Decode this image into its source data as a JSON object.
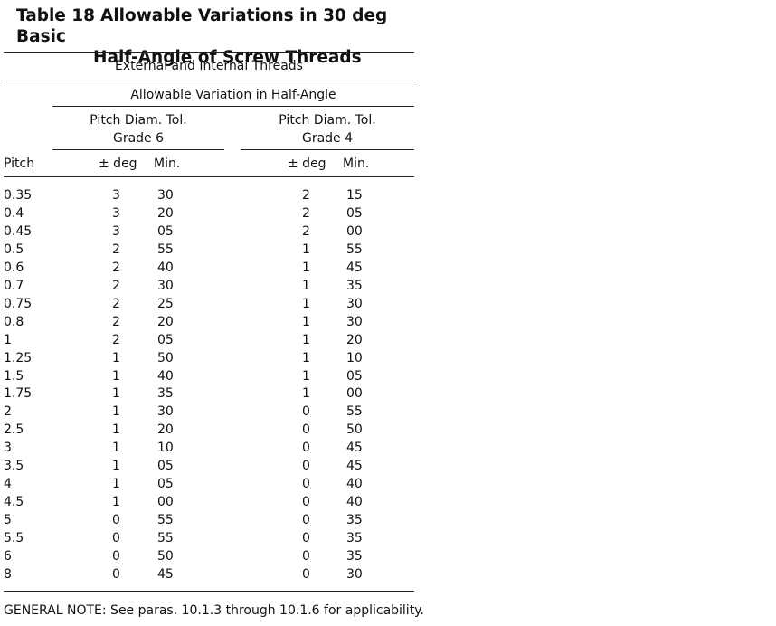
{
  "table": {
    "number": "Table 18",
    "title_line1": "Allowable Variations in 30 deg Basic",
    "title_line2": "Half-Angle of Screw Threads",
    "header": {
      "group": "External and Internal Threads",
      "variation": "Allowable Variation in Half-Angle",
      "grade6_line1": "Pitch Diam. Tol.",
      "grade6_line2": "Grade 6",
      "grade4_line1": "Pitch Diam. Tol.",
      "grade4_line2": "Grade 4",
      "pitch": "Pitch",
      "deg": "± deg",
      "min": "Min."
    },
    "rows": [
      {
        "pitch": "0.35",
        "g6_deg": "3",
        "g6_min": "30",
        "g4_deg": "2",
        "g4_min": "15"
      },
      {
        "pitch": "0.4",
        "g6_deg": "3",
        "g6_min": "20",
        "g4_deg": "2",
        "g4_min": "05"
      },
      {
        "pitch": "0.45",
        "g6_deg": "3",
        "g6_min": "05",
        "g4_deg": "2",
        "g4_min": "00"
      },
      {
        "pitch": "0.5",
        "g6_deg": "2",
        "g6_min": "55",
        "g4_deg": "1",
        "g4_min": "55"
      },
      {
        "pitch": "0.6",
        "g6_deg": "2",
        "g6_min": "40",
        "g4_deg": "1",
        "g4_min": "45"
      },
      {
        "pitch": "0.7",
        "g6_deg": "2",
        "g6_min": "30",
        "g4_deg": "1",
        "g4_min": "35"
      },
      {
        "pitch": "0.75",
        "g6_deg": "2",
        "g6_min": "25",
        "g4_deg": "1",
        "g4_min": "30"
      },
      {
        "pitch": "0.8",
        "g6_deg": "2",
        "g6_min": "20",
        "g4_deg": "1",
        "g4_min": "30"
      },
      {
        "pitch": "1",
        "g6_deg": "2",
        "g6_min": "05",
        "g4_deg": "1",
        "g4_min": "20"
      },
      {
        "pitch": "1.25",
        "g6_deg": "1",
        "g6_min": "50",
        "g4_deg": "1",
        "g4_min": "10"
      },
      {
        "pitch": "1.5",
        "g6_deg": "1",
        "g6_min": "40",
        "g4_deg": "1",
        "g4_min": "05"
      },
      {
        "pitch": "1.75",
        "g6_deg": "1",
        "g6_min": "35",
        "g4_deg": "1",
        "g4_min": "00"
      },
      {
        "pitch": "2",
        "g6_deg": "1",
        "g6_min": "30",
        "g4_deg": "0",
        "g4_min": "55"
      },
      {
        "pitch": "2.5",
        "g6_deg": "1",
        "g6_min": "20",
        "g4_deg": "0",
        "g4_min": "50"
      },
      {
        "pitch": "3",
        "g6_deg": "1",
        "g6_min": "10",
        "g4_deg": "0",
        "g4_min": "45"
      },
      {
        "pitch": "3.5",
        "g6_deg": "1",
        "g6_min": "05",
        "g4_deg": "0",
        "g4_min": "45"
      },
      {
        "pitch": "4",
        "g6_deg": "1",
        "g6_min": "05",
        "g4_deg": "0",
        "g4_min": "40"
      },
      {
        "pitch": "4.5",
        "g6_deg": "1",
        "g6_min": "00",
        "g4_deg": "0",
        "g4_min": "40"
      },
      {
        "pitch": "5",
        "g6_deg": "0",
        "g6_min": "55",
        "g4_deg": "0",
        "g4_min": "35"
      },
      {
        "pitch": "5.5",
        "g6_deg": "0",
        "g6_min": "55",
        "g4_deg": "0",
        "g4_min": "35"
      },
      {
        "pitch": "6",
        "g6_deg": "0",
        "g6_min": "50",
        "g4_deg": "0",
        "g4_min": "35"
      },
      {
        "pitch": "8",
        "g6_deg": "0",
        "g6_min": "45",
        "g4_deg": "0",
        "g4_min": "30"
      }
    ],
    "note": "GENERAL NOTE:  See paras. 10.1.3 through 10.1.6 for applicability."
  }
}
